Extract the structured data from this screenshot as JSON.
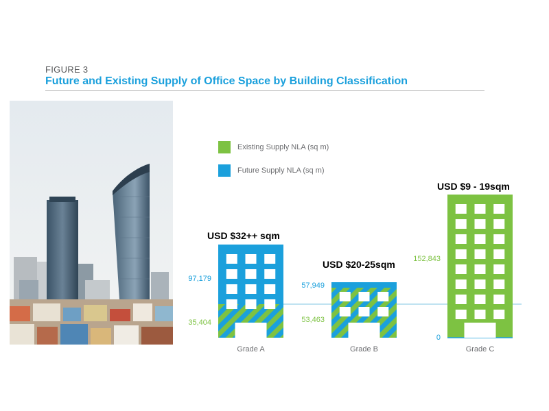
{
  "figure_label": "FIGURE 3",
  "chart_data": {
    "type": "bar",
    "title": "Future and Existing Supply of Office Space by Building Classification",
    "categories": [
      "Grade A",
      "Grade B",
      "Grade C"
    ],
    "series": [
      {
        "name": "Existing Supply NLA (sq m)",
        "color": "#7dc242",
        "values": [
          35404,
          53463,
          152843
        ]
      },
      {
        "name": "Future Supply NLA (sq m)",
        "color": "#1ba0dc",
        "values": [
          97179,
          57949,
          0
        ]
      }
    ],
    "series_value_labels": [
      {
        "existing": "35,404",
        "future": "97,179"
      },
      {
        "existing": "53,463",
        "future": "57,949"
      },
      {
        "existing": "152,843",
        "future": "0"
      }
    ],
    "price_annotations": [
      "USD $32++ sqm",
      "USD $20-25sqm",
      "USD $9 -  19sqm"
    ]
  },
  "colors": {
    "title": "#1ba0dc",
    "existing": "#7dc242",
    "future": "#1ba0dc"
  }
}
